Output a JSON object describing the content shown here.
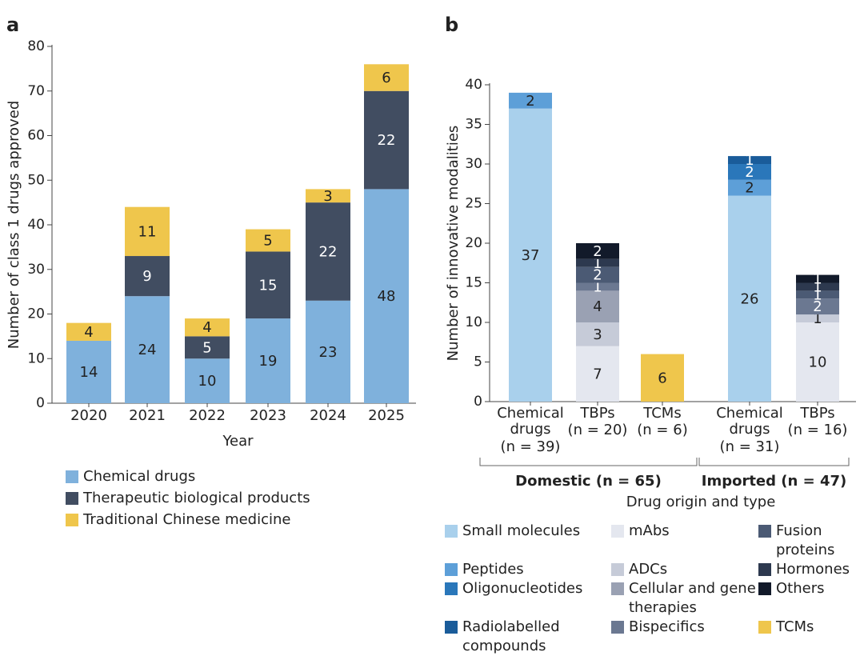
{
  "chart_data": [
    {
      "type": "bar",
      "stacked": true,
      "panel_label": "a",
      "ylabel": "Number of class 1 drugs approved",
      "xlabel": "Year",
      "categories": [
        "2020",
        "2021",
        "2022",
        "2023",
        "2024",
        "2025"
      ],
      "series": [
        {
          "name": "Chemical drugs",
          "color": "#7fb1dc",
          "values": [
            14,
            24,
            10,
            19,
            23,
            48
          ]
        },
        {
          "name": "Therapeutic biological products",
          "color": "#414d61",
          "values": [
            null,
            9,
            5,
            15,
            22,
            22
          ]
        },
        {
          "name": "Traditional Chinese medicine",
          "color": "#efc64c",
          "values": [
            4,
            11,
            4,
            5,
            3,
            6
          ]
        }
      ],
      "ylim": [
        0,
        80
      ],
      "yticks": [
        0,
        10,
        20,
        30,
        40,
        50,
        60,
        70,
        80
      ]
    },
    {
      "type": "bar",
      "stacked": true,
      "panel_label": "b",
      "ylabel": "Number of innovative modalities",
      "xlabel": "Drug origin and type",
      "categories": [
        "Chemical drugs",
        "TBPs",
        "TCMs",
        "Chemical drugs",
        "TBPs"
      ],
      "category_notes": [
        "(n = 39)",
        "(n = 20)",
        "(n = 6)",
        "(n = 31)",
        "(n = 16)"
      ],
      "groups": [
        {
          "label": "Domestic (n = 65)",
          "size": 3
        },
        {
          "label": "Imported (n = 47)",
          "size": 2
        }
      ],
      "series": [
        {
          "name": "Small molecules",
          "color": "#a9d0ec",
          "values": [
            37,
            null,
            null,
            26,
            null
          ]
        },
        {
          "name": "Peptides",
          "color": "#5d9fd8",
          "values": [
            2,
            null,
            null,
            2,
            null
          ]
        },
        {
          "name": "Oligonucleotides",
          "color": "#2a77ba",
          "values": [
            null,
            null,
            null,
            2,
            null
          ]
        },
        {
          "name": "Radiolabelled compounds",
          "color": "#1a5c9a",
          "values": [
            null,
            null,
            null,
            1,
            null
          ]
        },
        {
          "name": "mAbs",
          "color": "#e4e7ef",
          "values": [
            null,
            7,
            null,
            null,
            10
          ]
        },
        {
          "name": "ADCs",
          "color": "#c6cbd8",
          "values": [
            null,
            3,
            null,
            null,
            1
          ]
        },
        {
          "name": "Cellular and gene therapies",
          "color": "#9aa1b3",
          "values": [
            null,
            4,
            null,
            null,
            null
          ]
        },
        {
          "name": "Bispecifics",
          "color": "#6b7891",
          "values": [
            null,
            1,
            null,
            null,
            2
          ]
        },
        {
          "name": "Fusion proteins",
          "color": "#4b5a74",
          "values": [
            null,
            2,
            null,
            null,
            1
          ]
        },
        {
          "name": "Hormones",
          "color": "#2d394f",
          "values": [
            null,
            1,
            null,
            null,
            1
          ]
        },
        {
          "name": "Others",
          "color": "#121a2a",
          "values": [
            null,
            2,
            null,
            null,
            1
          ]
        },
        {
          "name": "TCMs",
          "color": "#efc64c",
          "values": [
            null,
            null,
            6,
            null,
            null
          ]
        }
      ],
      "ylim": [
        0,
        40
      ],
      "yticks": [
        0,
        5,
        10,
        15,
        20,
        25,
        30,
        35,
        40
      ]
    }
  ]
}
